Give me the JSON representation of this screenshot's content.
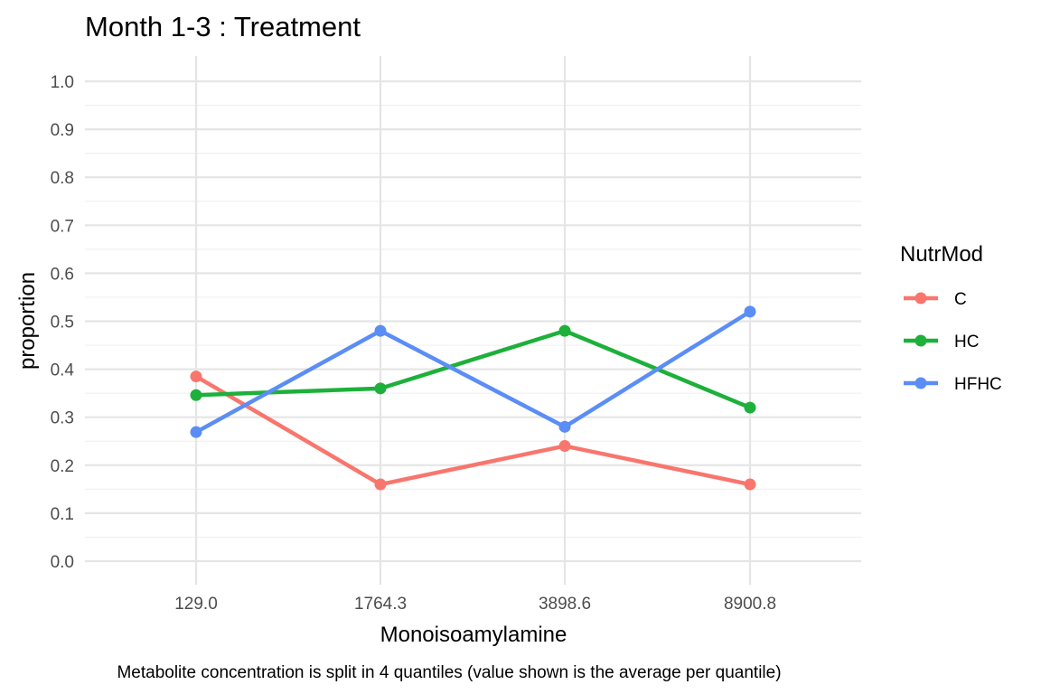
{
  "chart_data": {
    "type": "line",
    "title": "Month 1-3 : Treatment",
    "xlabel": "Monoisoamylamine",
    "ylabel": "proportion",
    "caption": "Metabolite concentration is split in 4 quantiles (value shown is the average per quantile)",
    "categories": [
      "129.0",
      "1764.3",
      "3898.6",
      "8900.8"
    ],
    "ylim": [
      0,
      1
    ],
    "yticks": [
      "0.0",
      "0.1",
      "0.2",
      "0.3",
      "0.4",
      "0.5",
      "0.6",
      "0.7",
      "0.8",
      "0.9",
      "1.0"
    ],
    "grid": true,
    "legend_title": "NutrMod",
    "legend_position": "right",
    "series": [
      {
        "name": "C",
        "color": "#F8766D",
        "values": [
          0.385,
          0.16,
          0.24,
          0.16
        ]
      },
      {
        "name": "HC",
        "color": "#1DB03A",
        "values": [
          0.346,
          0.36,
          0.48,
          0.32
        ]
      },
      {
        "name": "HFHC",
        "color": "#5B8DF6",
        "values": [
          0.269,
          0.48,
          0.28,
          0.52
        ]
      }
    ]
  }
}
